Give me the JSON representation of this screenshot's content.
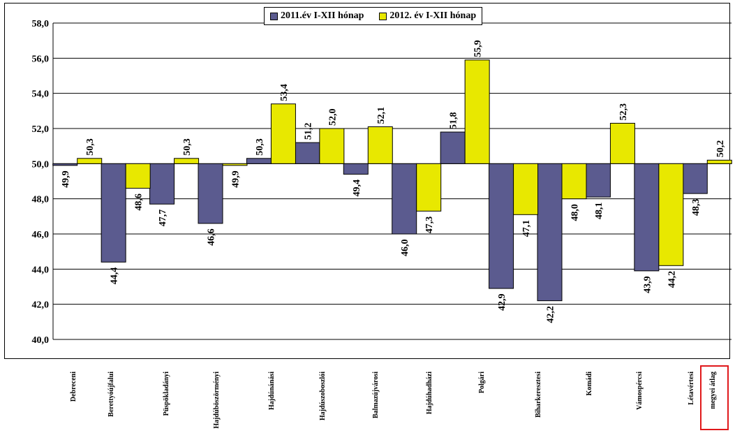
{
  "chart_data": {
    "type": "bar",
    "title": "",
    "xlabel": "",
    "ylabel": "",
    "ylim": [
      40,
      58
    ],
    "ytick_step": 2,
    "ytick_labels": [
      "40,0",
      "42,0",
      "44,0",
      "46,0",
      "48,0",
      "50,0",
      "52,0",
      "54,0",
      "56,0",
      "58,0"
    ],
    "baseline": 50,
    "grid": true,
    "legend_position": "top-center",
    "categories": [
      "Debreceni",
      "Berettyóújfalui",
      "Püspökladányi",
      "Hajdúböszörményi",
      "Hajdúnánási",
      "Hajdúszoboszlói",
      "Balmazújvárosi",
      "Hajdúhadházi",
      "Polgári",
      "Biharkeresztesi",
      "Komádi",
      "Vámospércsi",
      "Létavértesi",
      "megyei átlag"
    ],
    "highlighted_category": "megyei átlag",
    "series": [
      {
        "name": "2011.év I-XII hónap",
        "color": "#5b5b8f",
        "values": [
          49.9,
          44.4,
          47.7,
          46.6,
          50.3,
          51.2,
          49.4,
          46.0,
          51.8,
          42.9,
          42.2,
          48.1,
          43.9,
          48.3
        ],
        "labels": [
          "49,9",
          "44,4",
          "47,7",
          "46,6",
          "50,3",
          "51,2",
          "49,4",
          "46,0",
          "51,8",
          "42,9",
          "42,2",
          "48,1",
          "43,9",
          "48,3"
        ]
      },
      {
        "name": "2012. év I-XII hónap",
        "color": "#e8e800",
        "values": [
          50.3,
          48.6,
          50.3,
          49.9,
          53.4,
          52.0,
          52.1,
          47.3,
          55.9,
          47.1,
          48.0,
          52.3,
          44.2,
          50.2
        ],
        "labels": [
          "50,3",
          "48,6",
          "50,3",
          "49,9",
          "53,4",
          "52,0",
          "52,1",
          "47,3",
          "55,9",
          "47,1",
          "48,0",
          "52,3",
          "44,2",
          "50,2"
        ]
      }
    ]
  }
}
